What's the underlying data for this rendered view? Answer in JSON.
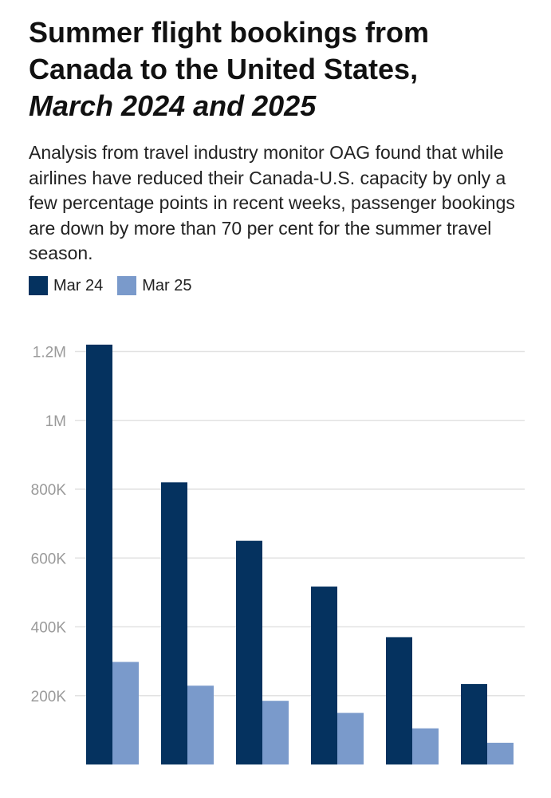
{
  "title_line1": "Summer flight bookings from",
  "title_line2": "Canada to the United States,",
  "title_line3": "March 2024 and 2025",
  "description": "Analysis from travel industry monitor OAG found that while airlines have reduced their Canada-U.S. capacity by only a few percentage points in recent weeks, passenger bookings are down by more than 70 per cent for the summer travel season.",
  "legend": [
    {
      "label": "Mar 24",
      "color": "#05325f"
    },
    {
      "label": "Mar 25",
      "color": "#7a9acb"
    }
  ],
  "chart_data": {
    "type": "bar",
    "title": "Summer flight bookings from Canada to the United States, March 2024 and 2025",
    "categories": [
      "",
      "",
      "",
      "",
      "",
      ""
    ],
    "series": [
      {
        "name": "Mar 24",
        "color": "#05325f",
        "values": [
          1220000,
          820000,
          650000,
          517000,
          370000,
          234000
        ]
      },
      {
        "name": "Mar 25",
        "color": "#7a9acb",
        "values": [
          298000,
          229000,
          185000,
          150000,
          105000,
          63000
        ]
      }
    ],
    "yticks": [
      200000,
      400000,
      600000,
      800000,
      1000000,
      1200000
    ],
    "ytick_labels": [
      "200K",
      "400K",
      "600K",
      "800K",
      "1M",
      "1.2M"
    ],
    "ylim": [
      0,
      1250000
    ],
    "xlabel": "",
    "ylabel": "",
    "grid": true
  }
}
